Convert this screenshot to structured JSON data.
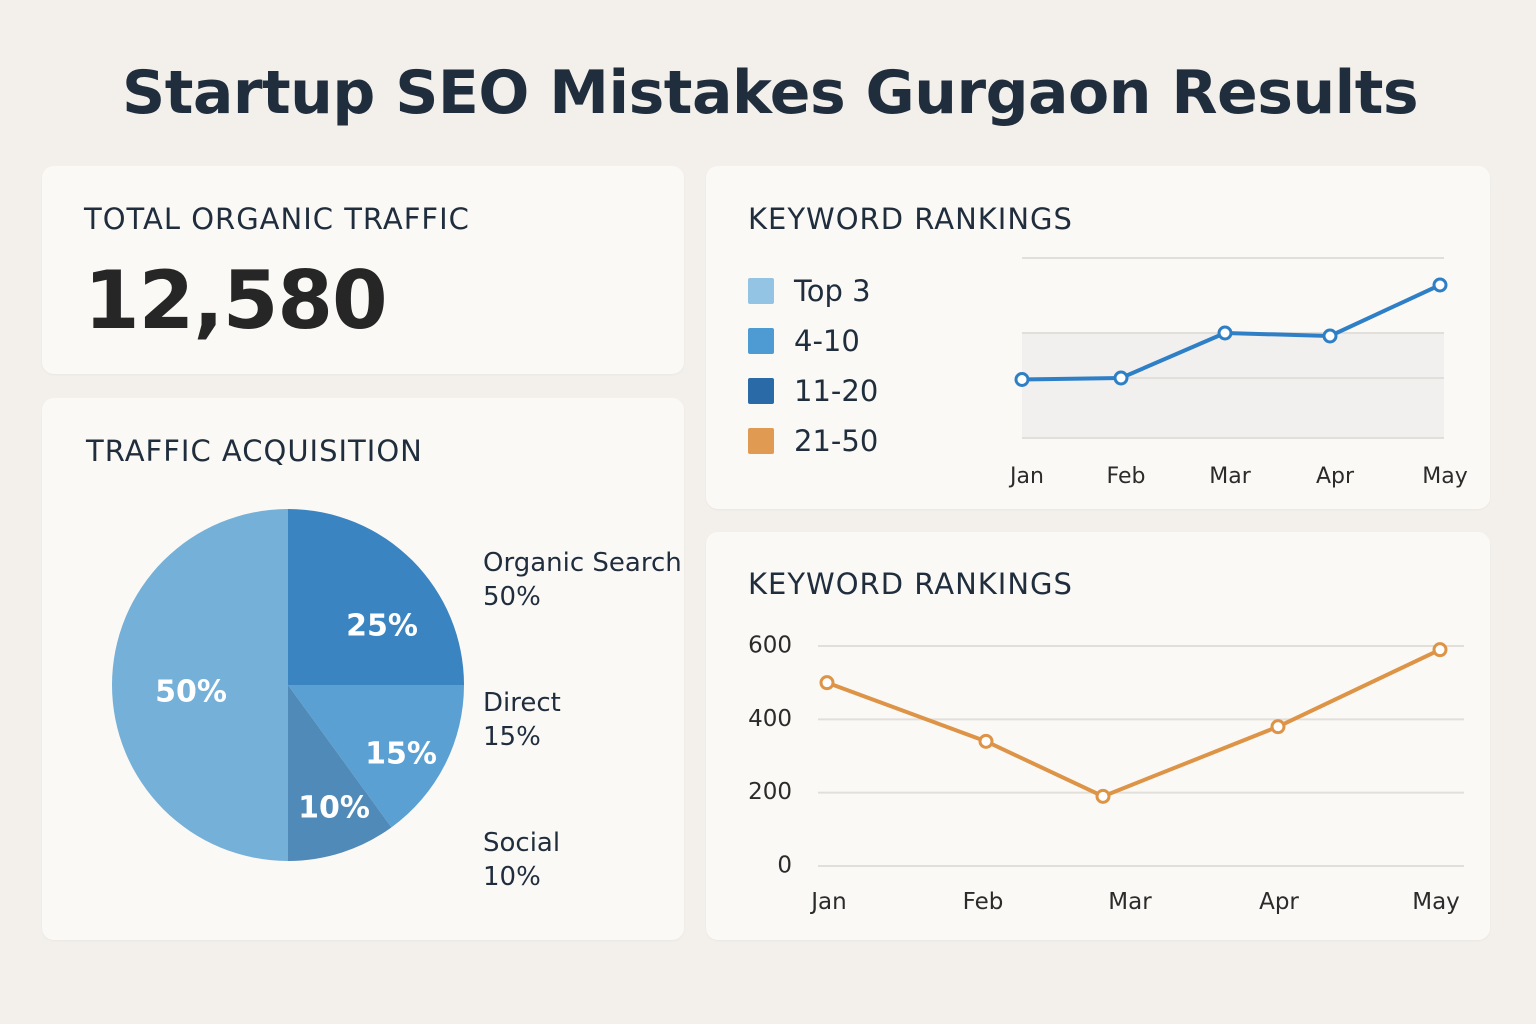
{
  "title": "Startup SEO Mistakes Gurgaon Results",
  "colors": {
    "background": "#f3f0ec",
    "card": "#fbf9f6",
    "line_blue": "#2f7fc6",
    "line_orange": "#dd9447"
  },
  "total_traffic": {
    "label": "TOTAL ORGANIC TRAFFIC",
    "value": "12,580"
  },
  "traffic_acquisition": {
    "label": "TRAFFIC ACQUISITION",
    "legend": [
      {
        "name": "Organic Search",
        "pct": "50%"
      },
      {
        "name": "Direct",
        "pct": "15%"
      },
      {
        "name": "Social",
        "pct": "10%"
      }
    ]
  },
  "keyword_rankings_1": {
    "label": "KEYWORD RANKINGS",
    "legend": [
      {
        "name": "Top 3",
        "color": "#93c4e3"
      },
      {
        "name": "4-10",
        "color": "#4e9bd4"
      },
      {
        "name": "11-20",
        "color": "#2a6aa6"
      },
      {
        "name": "21-50",
        "color": "#e09a52"
      }
    ]
  },
  "keyword_rankings_2": {
    "label": "KEYWORD RANKINGS"
  },
  "chart_data": [
    {
      "type": "pie",
      "title": "TRAFFIC ACQUISITION",
      "slices": [
        {
          "label": "50%",
          "value": 50,
          "color": "#74b0d8"
        },
        {
          "label": "25%",
          "value": 25,
          "color": "#3a84c1"
        },
        {
          "label": "15%",
          "value": 15,
          "color": "#5aa0d3"
        },
        {
          "label": "10%",
          "value": 10,
          "color": "#4f8ab8"
        }
      ]
    },
    {
      "type": "line",
      "title": "KEYWORD RANKINGS",
      "categories": [
        "Jan",
        "Feb",
        "Mar",
        "Apr",
        "May"
      ],
      "series": [
        {
          "values": [
            39,
            40,
            70,
            68,
            102
          ],
          "color": "#2f7fc6"
        }
      ],
      "ylim": [
        0,
        120
      ],
      "grid": true
    },
    {
      "type": "line",
      "title": "KEYWORD RANKINGS",
      "categories": [
        "Jan",
        "Feb",
        "Mar",
        "Apr",
        "May"
      ],
      "series": [
        {
          "values": [
            500,
            340,
            190,
            380,
            590
          ],
          "color": "#dd9447"
        }
      ],
      "yticks": [
        "0",
        "200",
        "400",
        "600"
      ],
      "ylim": [
        0,
        600
      ],
      "grid": true
    }
  ]
}
